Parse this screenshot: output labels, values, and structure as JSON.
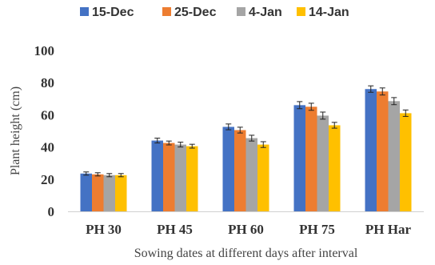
{
  "chart_data": {
    "type": "bar",
    "title": "",
    "xlabel": "Sowing dates at different days after interval",
    "ylabel": "Plant height (cm)",
    "ylim": [
      0,
      100
    ],
    "yticks": [
      0,
      20,
      40,
      60,
      80,
      100
    ],
    "grid": false,
    "legend_position": "top",
    "error_bars": true,
    "categories": [
      "PH 30",
      "PH 45",
      "PH 60",
      "PH 75",
      "PH Har"
    ],
    "series": [
      {
        "name": "15-Dec",
        "color": "#4472C4",
        "values": [
          23.5,
          44,
          52.5,
          66,
          76
        ],
        "errors": [
          1.0,
          1.5,
          1.8,
          2.2,
          2.0
        ]
      },
      {
        "name": "25-Dec",
        "color": "#ED7D31",
        "values": [
          23,
          42.5,
          50.5,
          65,
          74.5
        ],
        "errors": [
          1.0,
          1.2,
          1.8,
          2.2,
          2.2
        ]
      },
      {
        "name": "4-Jan",
        "color": "#A5A5A5",
        "values": [
          22.5,
          41.5,
          45.5,
          59.5,
          68.5
        ],
        "errors": [
          1.0,
          1.5,
          1.8,
          2.2,
          2.2
        ]
      },
      {
        "name": "14-Jan",
        "color": "#FFC000",
        "values": [
          22.5,
          40.5,
          41.5,
          53.5,
          61
        ],
        "errors": [
          1.0,
          1.2,
          1.8,
          1.8,
          2.0
        ]
      }
    ]
  }
}
